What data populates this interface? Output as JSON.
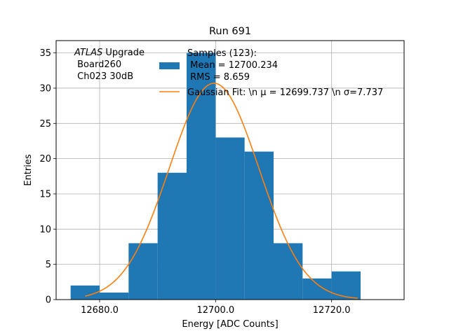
{
  "chart_data": {
    "type": "bar",
    "title": "Run 691",
    "xlabel": "Energy [ADC Counts]",
    "ylabel": "Entries",
    "xlim": [
      12672.5,
      12732.5
    ],
    "ylim": [
      0,
      36.75
    ],
    "xticks": [
      12680,
      12700,
      12720
    ],
    "xtick_labels": [
      "12680.0",
      "12700.0",
      "12720.0"
    ],
    "yticks": [
      0,
      5,
      10,
      15,
      20,
      25,
      30,
      35
    ],
    "ytick_labels": [
      "0",
      "5",
      "10",
      "15",
      "20",
      "25",
      "30",
      "35"
    ],
    "grid": true,
    "bin_edges": [
      12675,
      12680,
      12685,
      12690,
      12695,
      12700,
      12705,
      12710,
      12715,
      12720,
      12725
    ],
    "counts": [
      2,
      1,
      8,
      18,
      35,
      23,
      21,
      8,
      3,
      4
    ],
    "bar_color": "#1f77b4",
    "fit": {
      "type": "gaussian",
      "mu": 12699.737,
      "sigma": 7.737,
      "amplitude": 30.7,
      "x_range": [
        12677.5,
        12724.5
      ],
      "color": "#ff7f0e"
    },
    "annotation": {
      "line1_italic": "ATLAS",
      "line1_rest": " Upgrade",
      "line2": " Board260",
      "line3": " Ch023 30dB"
    },
    "legend": {
      "placement": "upper-center",
      "hist_lines": [
        "Samples (123):",
        " Mean = 12700.234",
        " RMS = 8.659"
      ],
      "fit_label": "Gaussian Fit: \\n μ = 12699.737 \\n σ=7.737"
    }
  }
}
